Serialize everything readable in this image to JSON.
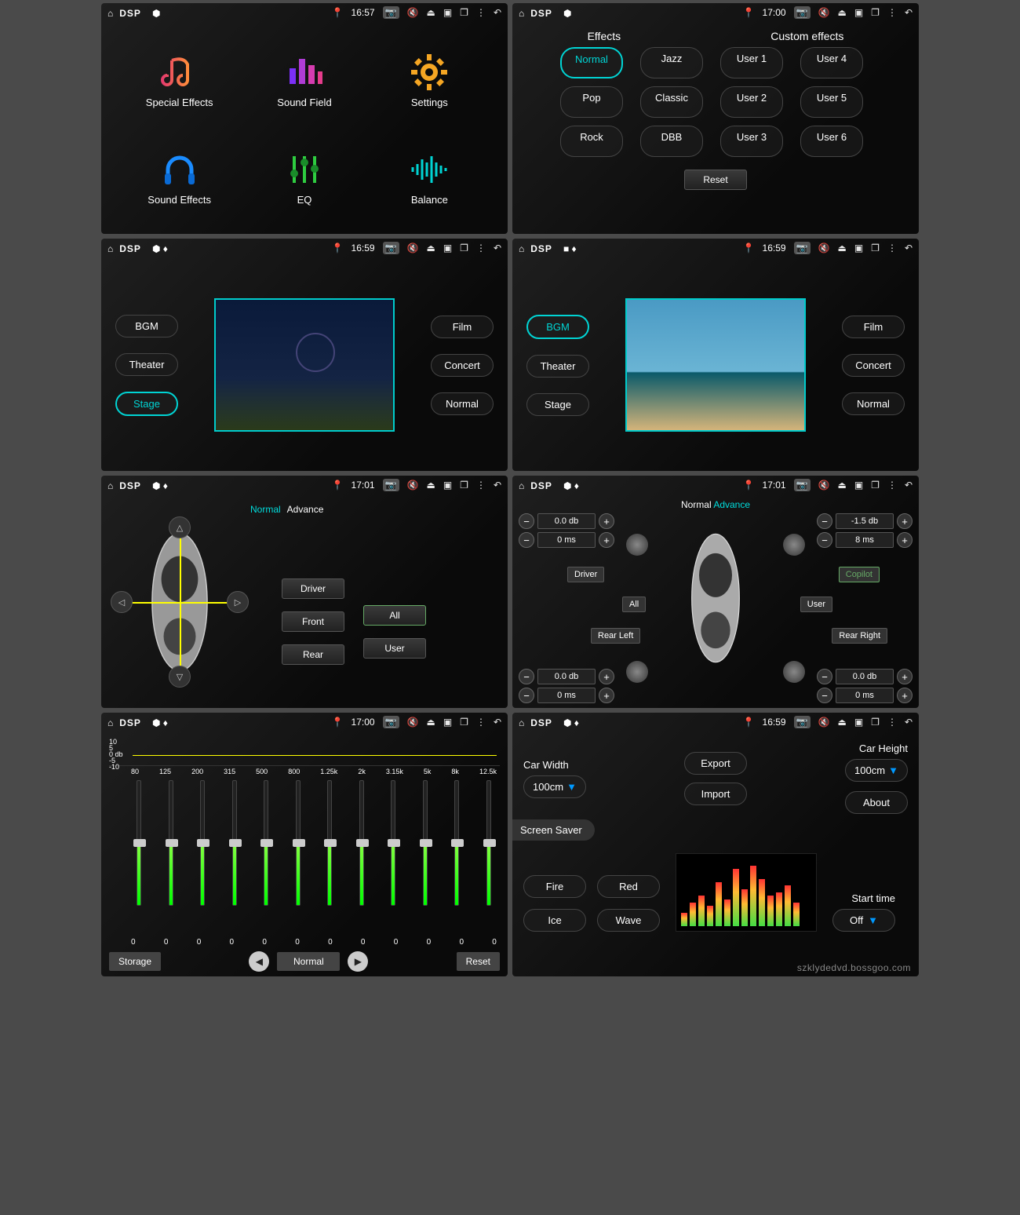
{
  "status": {
    "title": "DSP",
    "times": [
      "16:57",
      "17:00",
      "16:59",
      "16:59",
      "17:01",
      "17:01",
      "17:00",
      "16:59"
    ]
  },
  "panel1": {
    "items": [
      {
        "label": "Special Effects",
        "icon": "note",
        "color": "#e63c6c"
      },
      {
        "label": "Sound Field",
        "icon": "bars",
        "color": "#b03cd6"
      },
      {
        "label": "Settings",
        "icon": "gear",
        "color": "#f5a623"
      },
      {
        "label": "Sound Effects",
        "icon": "headphones",
        "color": "#1a8cff"
      },
      {
        "label": "EQ",
        "icon": "sliders",
        "color": "#2ecc40"
      },
      {
        "label": "Balance",
        "icon": "wave",
        "color": "#00d4d4"
      }
    ]
  },
  "panel2": {
    "headers": [
      "Effects",
      "Custom effects"
    ],
    "effects": [
      "Normal",
      "Jazz",
      "Pop",
      "Classic",
      "Rock",
      "DBB"
    ],
    "custom": [
      "User 1",
      "User 4",
      "User 2",
      "User 5",
      "User 3",
      "User 6"
    ],
    "active": "Normal",
    "reset": "Reset"
  },
  "panel3": {
    "left": [
      "BGM",
      "Theater",
      "Stage"
    ],
    "right": [
      "Film",
      "Concert",
      "Normal"
    ],
    "active": "Stage",
    "scene": "theater"
  },
  "panel4": {
    "left": [
      "BGM",
      "Theater",
      "Stage"
    ],
    "right": [
      "Film",
      "Concert",
      "Normal"
    ],
    "active": "BGM",
    "scene": "beach"
  },
  "panel5": {
    "tabs": [
      "Normal",
      "Advance"
    ],
    "activeTab": "Normal",
    "colL": [
      "Driver",
      "Front",
      "Rear"
    ],
    "colR": [
      "All",
      "User"
    ],
    "selected": "All"
  },
  "panel6": {
    "tabs": [
      "Normal",
      "Advance"
    ],
    "activeTab": "Advance",
    "fl": {
      "db": "0.0 db",
      "ms": "0 ms"
    },
    "fr": {
      "db": "-1.5 db",
      "ms": "8 ms"
    },
    "rl": {
      "db": "0.0 db",
      "ms": "0 ms"
    },
    "rr": {
      "db": "0.0 db",
      "ms": "0 ms"
    },
    "buttons": {
      "driver": "Driver",
      "all": "All",
      "rearLeft": "Rear Left",
      "copilot": "Copilot",
      "user": "User",
      "rearRight": "Rear Right"
    },
    "selected": "Copilot"
  },
  "panel7": {
    "y": [
      "10",
      "5",
      "0 db",
      "-5",
      "-10"
    ],
    "freqs": [
      "80",
      "125",
      "200",
      "315",
      "500",
      "800",
      "1.25k",
      "2k",
      "3.15k",
      "5k",
      "8k",
      "12.5k"
    ],
    "vals": [
      "0",
      "0",
      "0",
      "0",
      "0",
      "0",
      "0",
      "0",
      "0",
      "0",
      "0",
      "0"
    ],
    "storage": "Storage",
    "preset": "Normal",
    "reset": "Reset"
  },
  "panel8": {
    "carWidth": {
      "label": "Car Width",
      "value": "100cm"
    },
    "carHeight": {
      "label": "Car Height",
      "value": "100cm"
    },
    "export": "Export",
    "import": "Import",
    "about": "About",
    "screenSaver": "Screen Saver",
    "saverBtns": [
      "Fire",
      "Red",
      "Ice",
      "Wave"
    ],
    "startTime": {
      "label": "Start time",
      "value": "Off"
    },
    "vizHeights": [
      20,
      35,
      45,
      30,
      65,
      40,
      85,
      55,
      90,
      70,
      45,
      50,
      60,
      35
    ]
  },
  "watermark": "szklydedvd.bossgoo.com",
  "colors": {
    "accent": "#00d4d4",
    "yellow": "#ffeb00",
    "green": "#3f3"
  }
}
